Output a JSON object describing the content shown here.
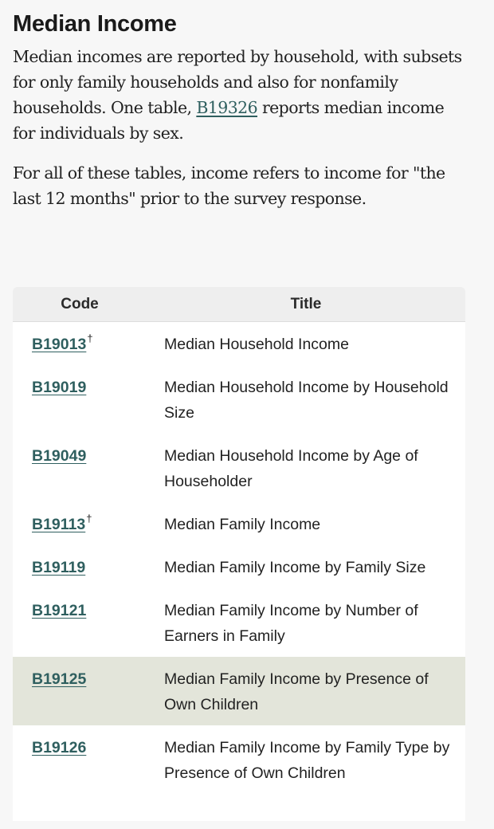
{
  "heading": "Median Income",
  "intro": {
    "part1": "Median incomes are reported by household, with subsets for only family households and also for nonfamily households. One table, ",
    "link": "B19326",
    "part2": " reports median income for individuals by sex."
  },
  "paragraph2": "For all of these tables, income refers to income for \"the last 12 months\" prior to the survey response.",
  "table": {
    "headers": {
      "code": "Code",
      "title": "Title"
    },
    "rows": [
      {
        "code": "B19013",
        "mark": "†",
        "title": "Median Household Income"
      },
      {
        "code": "B19019",
        "mark": "",
        "title": "Median Household Income by Household Size"
      },
      {
        "code": "B19049",
        "mark": "",
        "title": "Median Household Income by Age of Householder"
      },
      {
        "code": "B19113",
        "mark": "†",
        "title": "Median Family Income"
      },
      {
        "code": "B19119",
        "mark": "",
        "title": "Median Family Income by Family Size"
      },
      {
        "code": "B19121",
        "mark": "",
        "title": "Median Family Income by Number of Earners in Family"
      },
      {
        "code": "B19125",
        "mark": "",
        "title": "Median Family Income by Presence of Own Children"
      },
      {
        "code": "B19126",
        "mark": "",
        "title": "Median Family Income by Family Type by Presence of Own Children"
      }
    ]
  },
  "colors": {
    "link": "#2f5f5f",
    "highlight_row": "#e3e5da",
    "header_bg": "#eeeeee"
  }
}
